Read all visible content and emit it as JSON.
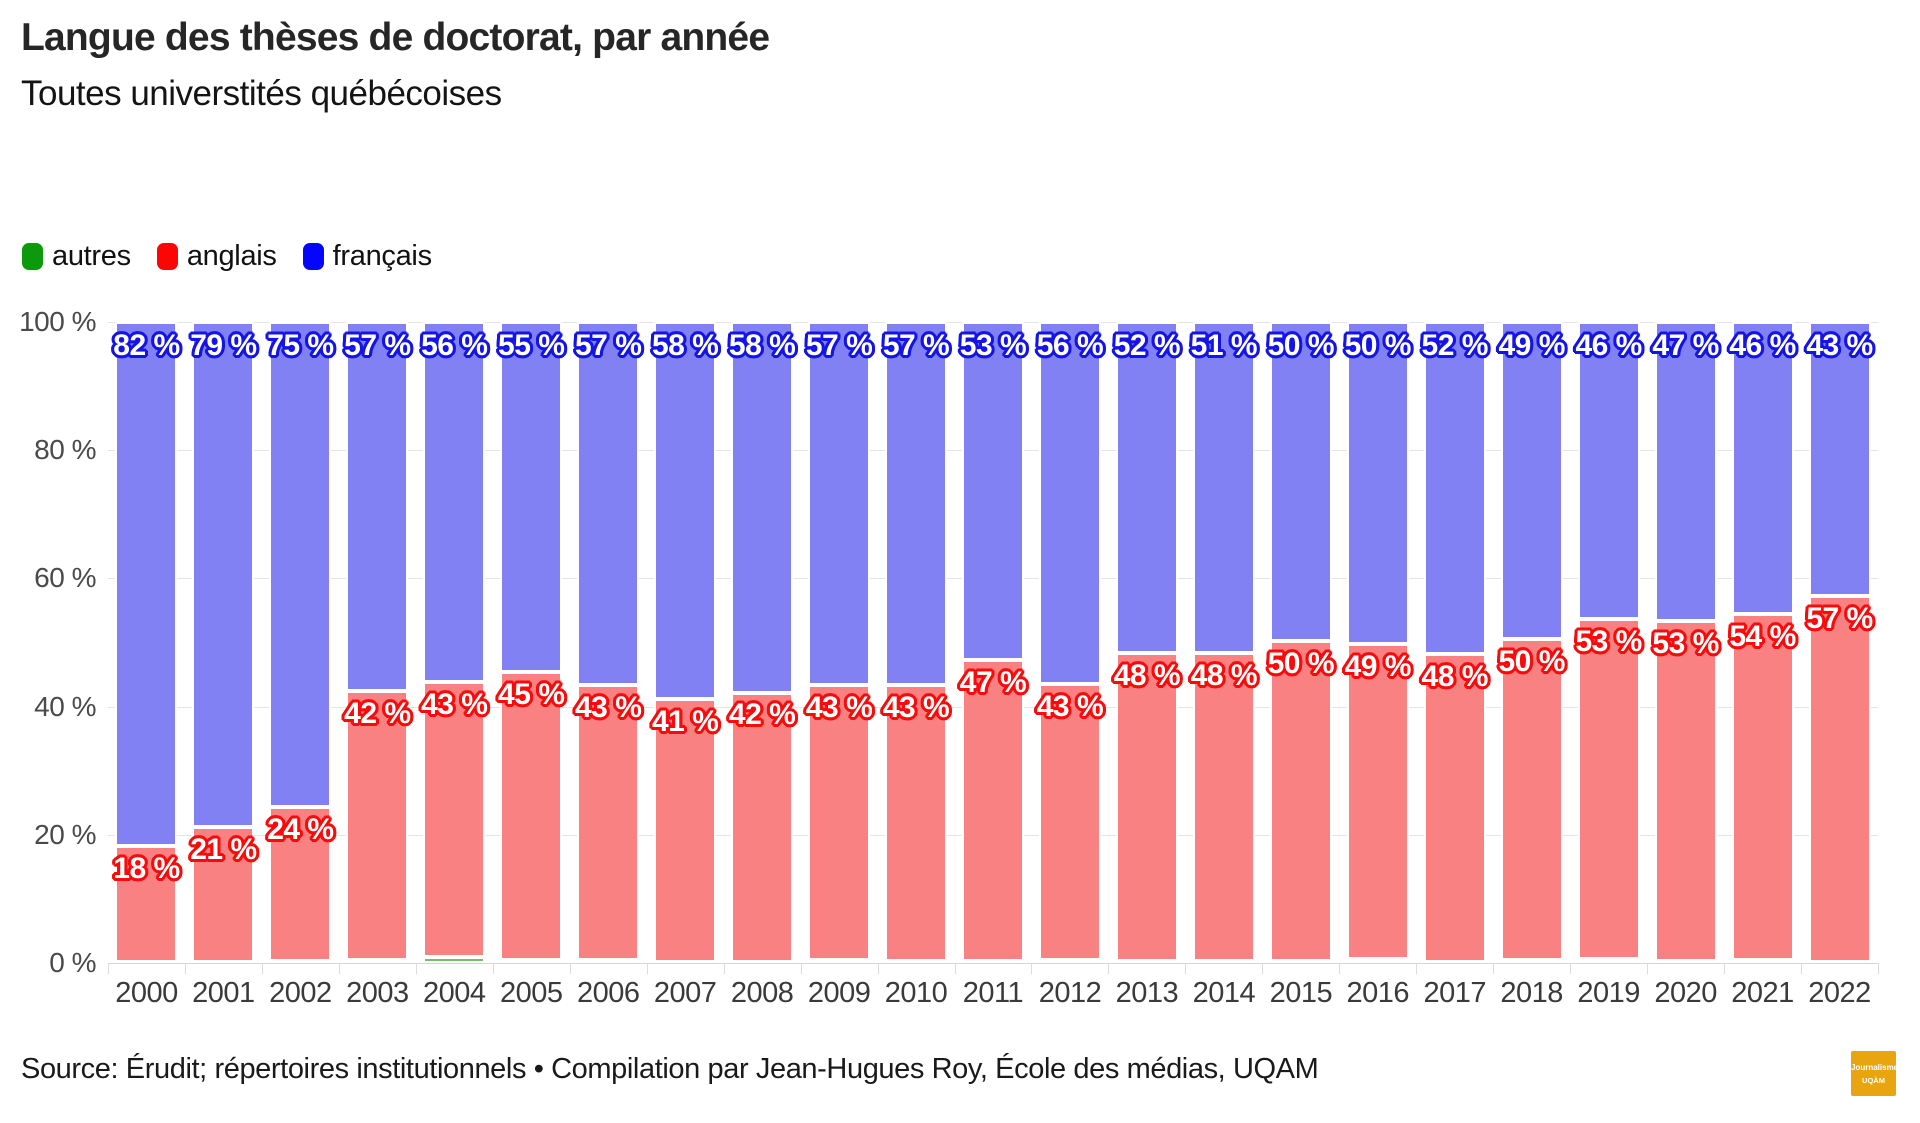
{
  "title": "Langue des thèses de doctorat, par année",
  "subtitle": "Toutes universtités québécoises",
  "source_line": "Source: Érudit; répertoires institutionnels • Compilation par Jean-Hugues Roy, École des médias, UQAM",
  "logo": {
    "line1": "Journalisme",
    "line2": "UQÀM",
    "bg_color": "#e9a50f"
  },
  "legend": {
    "position": "top-left",
    "items": [
      {
        "label": "autres",
        "color": "#0c9a0c"
      },
      {
        "label": "anglais",
        "color": "#fb0505"
      },
      {
        "label": "français",
        "color": "#0505fb"
      }
    ]
  },
  "y_axis": {
    "tick_labels": [
      "0 %",
      "20 %",
      "40 %",
      "60 %",
      "80 %",
      "100 %"
    ],
    "ticks": [
      0,
      20,
      40,
      60,
      80,
      100
    ]
  },
  "chart_data": {
    "type": "bar",
    "stacked": true,
    "unit": "%",
    "title": "Langue des thèses de doctorat, par année",
    "subtitle": "Toutes universtités québécoises",
    "ylim": [
      0,
      100
    ],
    "grid": "horizontal",
    "legend_position": "top-left",
    "categories": [
      "2000",
      "2001",
      "2002",
      "2003",
      "2004",
      "2005",
      "2006",
      "2007",
      "2008",
      "2009",
      "2010",
      "2011",
      "2012",
      "2013",
      "2014",
      "2015",
      "2016",
      "2017",
      "2018",
      "2019",
      "2020",
      "2021",
      "2022"
    ],
    "series": [
      {
        "name": "autres",
        "color": "#79bc6a",
        "labels_shown": false,
        "values": [
          0.2,
          0.2,
          0.3,
          0.5,
          0.9,
          0.4,
          0.4,
          0.2,
          0.2,
          0.4,
          0.3,
          0.3,
          0.5,
          0.3,
          0.3,
          0.3,
          0.7,
          0.2,
          0.5,
          0.6,
          0.3,
          0.5,
          0.2
        ]
      },
      {
        "name": "anglais",
        "color": "#f98181",
        "label_outline": "#f70b0b",
        "labels_shown": true,
        "values": [
          18,
          21,
          24,
          42,
          43,
          45,
          43,
          41,
          42,
          43,
          43,
          47,
          43,
          48,
          48,
          50,
          49,
          48,
          50,
          53,
          53,
          54,
          57
        ]
      },
      {
        "name": "français",
        "color": "#8181f3",
        "label_outline": "#1414e6",
        "labels_shown": true,
        "values": [
          82,
          79,
          75,
          57,
          56,
          55,
          57,
          58,
          58,
          57,
          57,
          53,
          56,
          52,
          51,
          50,
          50,
          52,
          49,
          46,
          47,
          46,
          43
        ]
      }
    ],
    "label_format": "{v} %"
  }
}
